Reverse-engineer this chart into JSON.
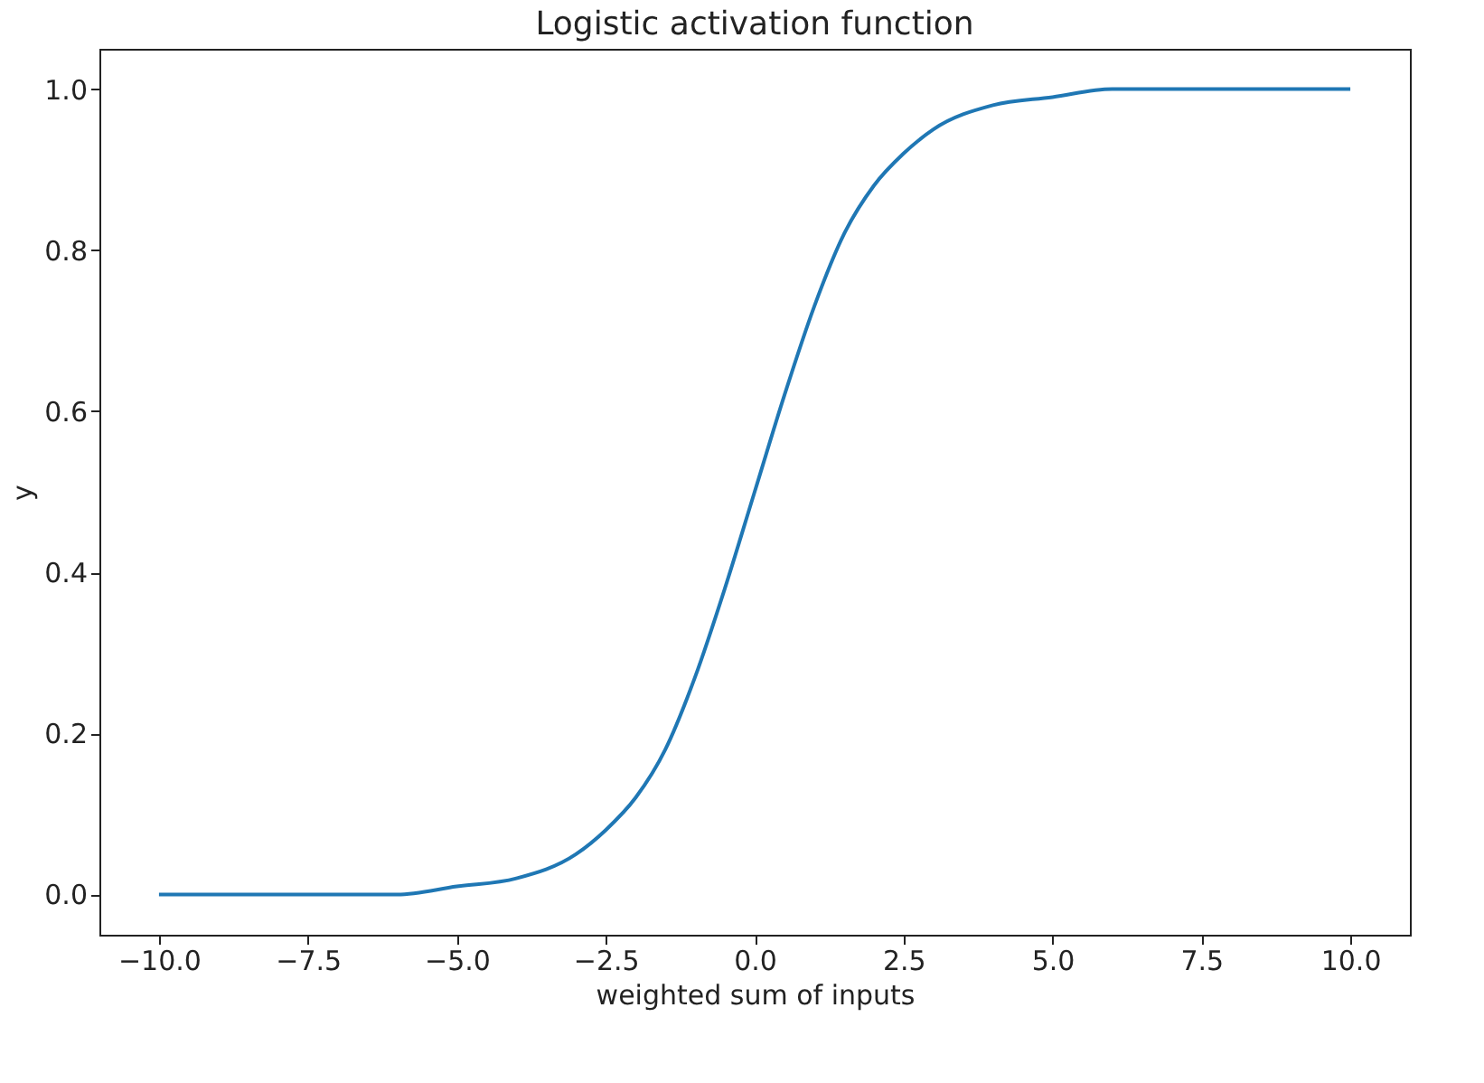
{
  "chart_data": {
    "type": "line",
    "title": "Logistic activation function",
    "xlabel": "weighted sum of inputs",
    "ylabel": "y",
    "x": [
      -10,
      -8,
      -6,
      -5,
      -4,
      -3,
      -2.5,
      -2,
      -1.5,
      -1,
      -0.5,
      0,
      0.5,
      1,
      1.5,
      2,
      2.5,
      3,
      4,
      5,
      6,
      8,
      10
    ],
    "series": [
      {
        "color": "#1f77b4",
        "values": [
          0.0,
          0.0,
          0.0,
          0.01,
          0.02,
          0.05,
          0.08,
          0.12,
          0.18,
          0.27,
          0.38,
          0.5,
          0.62,
          0.73,
          0.82,
          0.88,
          0.92,
          0.95,
          0.98,
          0.99,
          1.0,
          1.0,
          1.0
        ]
      }
    ],
    "xlim": [
      -11,
      11
    ],
    "ylim": [
      -0.05,
      1.05
    ],
    "xticks": [
      {
        "value": -10,
        "label": "−10.0"
      },
      {
        "value": -7.5,
        "label": "−7.5"
      },
      {
        "value": -5,
        "label": "−5.0"
      },
      {
        "value": -2.5,
        "label": "−2.5"
      },
      {
        "value": 0,
        "label": "0.0"
      },
      {
        "value": 2.5,
        "label": "2.5"
      },
      {
        "value": 5,
        "label": "5.0"
      },
      {
        "value": 7.5,
        "label": "7.5"
      },
      {
        "value": 10,
        "label": "10.0"
      }
    ],
    "yticks": [
      {
        "value": 0,
        "label": "0.0"
      },
      {
        "value": 0.2,
        "label": "0.2"
      },
      {
        "value": 0.4,
        "label": "0.4"
      },
      {
        "value": 0.6,
        "label": "0.6"
      },
      {
        "value": 0.8,
        "label": "0.8"
      },
      {
        "value": 1.0,
        "label": "1.0"
      }
    ],
    "grid": false,
    "marker": "none",
    "line_style": "solid"
  }
}
